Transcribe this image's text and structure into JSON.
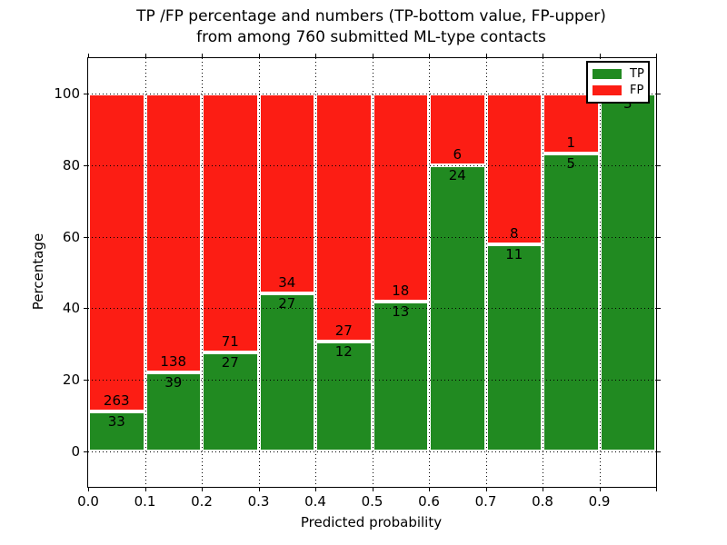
{
  "title": {
    "line1": "TP /FP percentage and numbers (TP-bottom value, FP-upper)",
    "line2": "from among 760 submitted ML-type contacts"
  },
  "axes": {
    "xlabel": "Predicted probability",
    "ylabel": "Percentage",
    "x_tick_labels": [
      "0.0",
      "0.1",
      "0.2",
      "0.3",
      "0.4",
      "0.5",
      "0.6",
      "0.7",
      "0.8",
      "0.9"
    ],
    "y_tick_labels": [
      "0",
      "20",
      "40",
      "60",
      "80",
      "100"
    ]
  },
  "legend": {
    "entries": [
      {
        "label": "TP",
        "color": "#218a21"
      },
      {
        "label": "FP",
        "color": "#fc1d14"
      }
    ]
  },
  "chart_data": {
    "type": "bar",
    "stacked": true,
    "normalized": "each bar stacked to 100 percent",
    "title": "TP /FP percentage and numbers (TP-bottom value, FP-upper) from among 760 submitted ML-type contacts",
    "xlabel": "Predicted probability",
    "ylabel": "Percentage",
    "total_contacts": 760,
    "bins": [
      "0.0-0.1",
      "0.1-0.2",
      "0.2-0.3",
      "0.3-0.4",
      "0.4-0.5",
      "0.5-0.6",
      "0.6-0.7",
      "0.7-0.8",
      "0.8-0.9",
      "0.9-1.0"
    ],
    "x_bin_edges": [
      0.0,
      0.1,
      0.2,
      0.3,
      0.4,
      0.5,
      0.6,
      0.7,
      0.8,
      0.9,
      1.0
    ],
    "series": [
      {
        "name": "TP",
        "color": "#218a21",
        "counts": [
          33,
          39,
          27,
          27,
          12,
          13,
          24,
          11,
          5,
          3
        ]
      },
      {
        "name": "FP",
        "color": "#fc1d14",
        "counts": [
          263,
          138,
          71,
          34,
          27,
          18,
          6,
          8,
          1,
          0
        ]
      }
    ],
    "tp_percentages": [
      11.1,
      22.0,
      27.6,
      44.3,
      30.8,
      41.9,
      80.0,
      57.9,
      83.3,
      100.0
    ],
    "xlim": [
      0.0,
      1.0
    ],
    "ylim": [
      -10,
      110
    ],
    "x_gridlines": [
      0.1,
      0.2,
      0.3,
      0.4,
      0.5,
      0.6,
      0.7,
      0.8,
      0.9
    ],
    "y_gridlines": [
      0,
      20,
      40,
      60,
      80,
      100
    ],
    "grid": true,
    "grid_style": "dotted",
    "legend_position": "upper right"
  }
}
